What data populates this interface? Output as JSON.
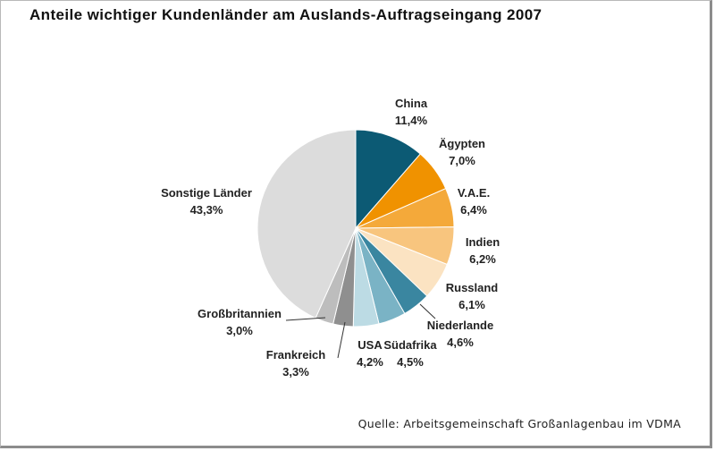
{
  "chart_data": {
    "type": "pie",
    "title": "Anteile wichtiger Kundenländer am Auslands-Auftragseingang 2007",
    "source": "Quelle: Arbeitsgemeinschaft Großanlagenbau im VDMA",
    "slices": [
      {
        "name": "China",
        "value": 11.4,
        "display": "11,4%",
        "color": "#0c5a74"
      },
      {
        "name": "Ägypten",
        "value": 7.0,
        "display": "7,0%",
        "color": "#f09200"
      },
      {
        "name": "V.A.E.",
        "value": 6.4,
        "display": "6,4%",
        "color": "#f4a93a"
      },
      {
        "name": "Indien",
        "value": 6.2,
        "display": "6,2%",
        "color": "#f8c57e"
      },
      {
        "name": "Russland",
        "value": 6.1,
        "display": "6,1%",
        "color": "#fbe3c2"
      },
      {
        "name": "Niederlande",
        "value": 4.6,
        "display": "4,6%",
        "color": "#3a86a0"
      },
      {
        "name": "Südafrika",
        "value": 4.5,
        "display": "4,5%",
        "color": "#7ab3c5"
      },
      {
        "name": "USA",
        "value": 4.2,
        "display": "4,2%",
        "color": "#bcdbe4"
      },
      {
        "name": "Frankreich",
        "value": 3.3,
        "display": "3,3%",
        "color": "#8f8f8f"
      },
      {
        "name": "Großbritannien",
        "value": 3.0,
        "display": "3,0%",
        "color": "#bdbdbd"
      },
      {
        "name": "Sonstige Länder",
        "value": 43.3,
        "display": "43,3%",
        "color": "#dcdcdc"
      }
    ]
  }
}
